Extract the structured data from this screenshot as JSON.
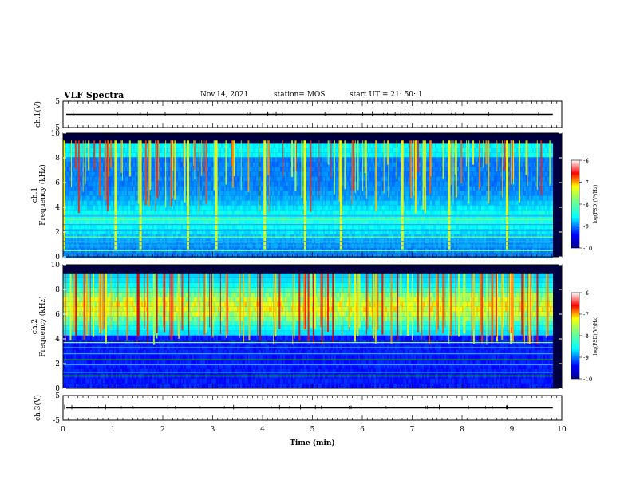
{
  "header": {
    "title": "VLF Spectra",
    "date": "Nov.14, 2021",
    "station": "station= MOS",
    "start": "start  UT =   21: 50: 1"
  },
  "chart_data": [
    {
      "type": "line",
      "name": "ch.1 waveform",
      "ylabel": "ch.1(V)",
      "ylim": [
        -5,
        5
      ],
      "yticks": [
        -5,
        5
      ],
      "xlim": [
        0,
        10
      ],
      "level": 0
    },
    {
      "type": "heatmap",
      "name": "ch.1 spectrogram",
      "ylabel": "ch.1 Frequency (kHz)",
      "ylabel_lines": [
        "ch.1",
        "Frequency (kHz)"
      ],
      "ylim": [
        0,
        10
      ],
      "yticks": [
        0,
        2,
        4,
        6,
        8,
        10
      ],
      "xlim": [
        0,
        10
      ],
      "colorbar": {
        "label": "log(PSD)(V²/Hz)",
        "range": [
          -10,
          -6
        ],
        "ticks": [
          -10,
          -9,
          -8,
          -7,
          -6
        ]
      },
      "band_lines_khz": [
        0.5,
        0.9,
        1.25,
        1.6,
        2.1,
        2.6,
        3.0,
        3.3
      ],
      "bright_bursts_min": [
        0.0,
        1.03,
        1.53,
        2.48,
        3.05,
        4.02,
        4.83,
        5.55,
        6.78,
        7.72,
        8.88
      ]
    },
    {
      "type": "heatmap",
      "name": "ch.2 spectrogram",
      "ylabel": "ch.2 Frequency (kHz)",
      "ylabel_lines": [
        "ch.2",
        "Frequency (kHz)"
      ],
      "ylim": [
        0,
        10
      ],
      "yticks": [
        0,
        2,
        4,
        6,
        8,
        10
      ],
      "xlim": [
        0,
        10
      ],
      "colorbar": {
        "label": "log(PSD)(V²/Hz)",
        "range": [
          -10,
          -6
        ],
        "ticks": [
          -10,
          -9,
          -8,
          -7,
          -6
        ]
      },
      "band_lines_khz": [
        1.0,
        1.3,
        1.9,
        2.3,
        2.8,
        3.3,
        3.7
      ]
    },
    {
      "type": "line",
      "name": "ch.3 waveform",
      "ylabel": "ch.3(V)",
      "ylim": [
        -5,
        5
      ],
      "yticks": [
        -5,
        5
      ],
      "xlim": [
        0,
        10
      ],
      "level": 0
    }
  ],
  "xaxis": {
    "label": "Time (min)",
    "range": [
      0,
      10
    ],
    "ticks": [
      0,
      1,
      2,
      3,
      4,
      5,
      6,
      7,
      8,
      9,
      10
    ]
  },
  "colors": {
    "background": "#ffffff",
    "frame": "#000000"
  }
}
